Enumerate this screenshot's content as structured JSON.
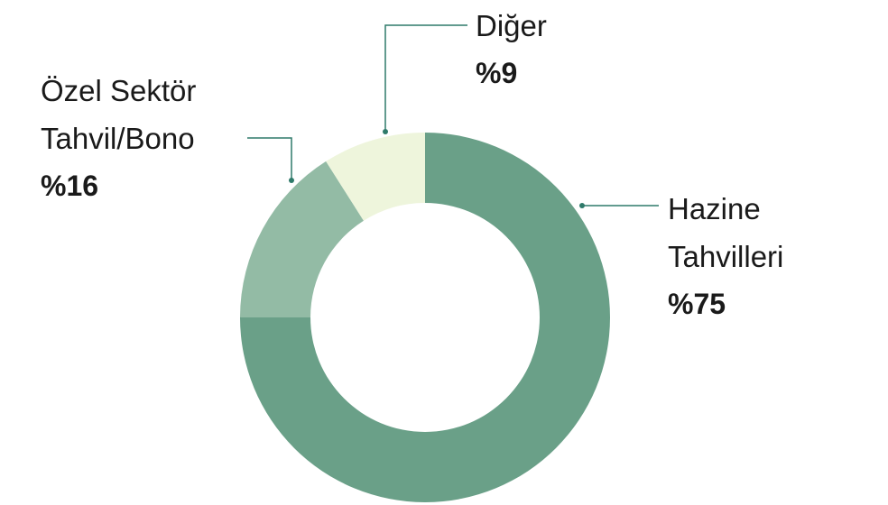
{
  "chart_data": {
    "type": "donut",
    "categories": [
      "Hazine Tahvilleri",
      "Özel Sektör Tahvil/Bono",
      "Diğer"
    ],
    "values": [
      75,
      16,
      9
    ],
    "value_labels": [
      "%75",
      "%16",
      "%9"
    ],
    "colors": [
      "#6aa088",
      "#93bba5",
      "#eef5dc"
    ]
  }
}
